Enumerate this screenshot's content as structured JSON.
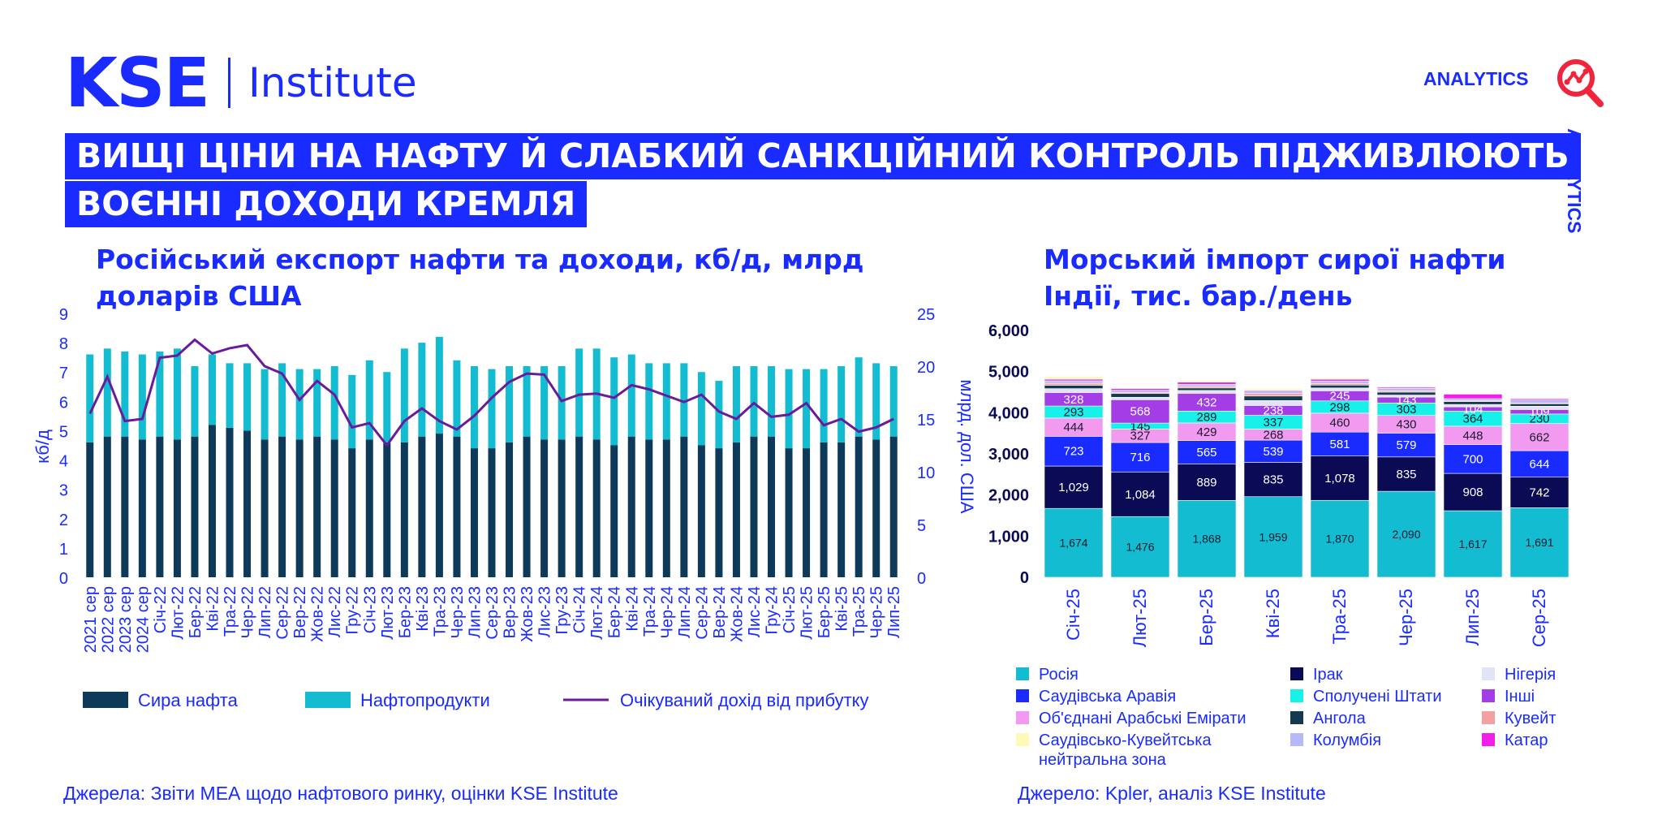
{
  "header": {
    "logo_main": "KSE",
    "logo_sub": "Institute",
    "analytics_label": "ANALYTICS",
    "analytics_side_label": "ANALYTICS",
    "headline_line1": "ВИЩІ ЦІНИ НА НАФТУ Й СЛАБКИЙ САНКЦІЙНИЙ КОНТРОЛЬ ПІДЖИВЛЮЮТЬ",
    "headline_line2": "ВОЄННІ ДОХОДИ КРЕМЛЯ"
  },
  "colors": {
    "brand_blue": "#1a2bff",
    "crude": "#0e3a5a",
    "products": "#14bcd2",
    "revenue_line": "#6a1b9a"
  },
  "chart_data": [
    {
      "type": "bar",
      "title": "Російський експорт нафти та доходи, кб/д, млрд доларів США",
      "ylabel": "кб/д",
      "y2label": "млрд. дол. США",
      "ylim": [
        0,
        9
      ],
      "y2lim": [
        0,
        25
      ],
      "stacked": true,
      "source": "Джерела: Звіти МЕА щодо нафтового ринку, оцінки KSE Institute",
      "categories": [
        "2021 сер",
        "2022 сер",
        "2023 сер",
        "2024 сер",
        "Січ-22",
        "Лют-22",
        "Бер-22",
        "Кві-22",
        "Тра-22",
        "Чер-22",
        "Лип-22",
        "Сер-22",
        "Вер-22",
        "Жов-22",
        "Лис-22",
        "Гру-22",
        "Січ-23",
        "Лют-23",
        "Бер-23",
        "Кві-23",
        "Тра-23",
        "Чер-23",
        "Лип-23",
        "Сер-23",
        "Вер-23",
        "Жов-23",
        "Лис-23",
        "Гру-23",
        "Січ-24",
        "Лют-24",
        "Бер-24",
        "Кві-24",
        "Тра-24",
        "Чер-24",
        "Лип-24",
        "Сер-24",
        "Вер-24",
        "Жов-24",
        "Лис-24",
        "Гру-24",
        "Січ-25",
        "Лют-25",
        "Бер-25",
        "Кві-25",
        "Тра-25",
        "Чер-25",
        "Лип-25"
      ],
      "series": [
        {
          "name": "Сира нафта",
          "axis": "left",
          "values": [
            4.6,
            4.8,
            4.8,
            4.7,
            4.8,
            4.7,
            4.8,
            5.2,
            5.1,
            5.0,
            4.7,
            4.8,
            4.7,
            4.8,
            4.7,
            4.4,
            4.7,
            4.6,
            4.6,
            4.8,
            4.9,
            4.8,
            4.4,
            4.4,
            4.6,
            4.8,
            4.7,
            4.7,
            4.8,
            4.7,
            4.5,
            4.8,
            4.7,
            4.7,
            4.8,
            4.5,
            4.4,
            4.6,
            4.8,
            4.8,
            4.4,
            4.4,
            4.6,
            4.6,
            4.8,
            4.7,
            4.8
          ]
        },
        {
          "name": "Нафтопродукти",
          "axis": "left",
          "values": [
            3.0,
            3.0,
            2.9,
            2.9,
            2.9,
            3.1,
            2.4,
            2.4,
            2.2,
            2.3,
            2.4,
            2.5,
            2.4,
            2.3,
            2.5,
            2.5,
            2.7,
            2.4,
            3.2,
            3.2,
            3.3,
            2.6,
            2.8,
            2.7,
            2.6,
            2.4,
            2.5,
            2.5,
            3.0,
            3.1,
            3.0,
            2.8,
            2.6,
            2.6,
            2.5,
            2.5,
            2.3,
            2.6,
            2.4,
            2.4,
            2.7,
            2.7,
            2.5,
            2.6,
            2.7,
            2.6,
            2.4
          ]
        },
        {
          "name": "Очікуваний дохід від прибутку",
          "axis": "right",
          "type": "line",
          "values": [
            15.5,
            19.0,
            14.8,
            15.0,
            20.8,
            21.0,
            22.5,
            21.2,
            21.7,
            22.0,
            20.0,
            19.3,
            16.8,
            18.6,
            17.3,
            14.2,
            14.6,
            12.5,
            14.8,
            16.0,
            14.8,
            14.0,
            15.3,
            17.0,
            18.5,
            19.3,
            19.2,
            16.7,
            17.3,
            17.4,
            17.0,
            18.2,
            17.8,
            17.2,
            16.6,
            17.3,
            15.7,
            15.0,
            16.5,
            15.2,
            15.4,
            16.5,
            14.4,
            15.0,
            13.8,
            14.2,
            15.0
          ]
        }
      ],
      "legend": [
        "Сира нафта",
        "Нафтопродукти",
        "Очікуваний дохід від прибутку"
      ],
      "legend_position": "bottom"
    },
    {
      "type": "bar",
      "title": "Морський імпорт сирої нафти Індії, тис. бар./день",
      "ylim": [
        0,
        6000
      ],
      "yticks": [
        "0",
        "1,000",
        "2,000",
        "3,000",
        "4,000",
        "5,000",
        "6,000"
      ],
      "stacked": true,
      "source": "Джерело: Kpler, аналіз KSE Institute",
      "categories": [
        "Січ-25",
        "Лют-25",
        "Бер-25",
        "Кві-25",
        "Тра-25",
        "Чер-25",
        "Лип-25",
        "Сер-25"
      ],
      "series": [
        {
          "name": "Росія",
          "color": "#14bcd2",
          "values": [
            1674,
            1476,
            1868,
            1959,
            1870,
            2090,
            1617,
            1691
          ],
          "labels": [
            "1,674",
            "1,476",
            "1,868",
            "1,959",
            "1,870",
            "2,090",
            "1,617",
            "1,691"
          ]
        },
        {
          "name": "Ірак",
          "color": "#0a0a55",
          "values": [
            1029,
            1084,
            889,
            835,
            1078,
            835,
            908,
            742
          ],
          "labels": [
            "1,029",
            "1,084",
            "889",
            "835",
            "1,078",
            "835",
            "908",
            "742"
          ]
        },
        {
          "name": "Саудівська Аравія",
          "color": "#1a2bff",
          "values": [
            723,
            716,
            565,
            539,
            581,
            579,
            700,
            644
          ],
          "labels": [
            "723",
            "716",
            "565",
            "539",
            "581",
            "579",
            "700",
            "644"
          ]
        },
        {
          "name": "Об'єднані Арабські Емірати",
          "color": "#f29af0",
          "values": [
            444,
            327,
            429,
            268,
            460,
            430,
            448,
            662
          ],
          "labels": [
            "444",
            "327",
            "429",
            "268",
            "460",
            "430",
            "448",
            "662"
          ]
        },
        {
          "name": "Сполучені Штати",
          "color": "#18f0ea",
          "values": [
            293,
            145,
            289,
            337,
            298,
            303,
            364,
            230
          ],
          "labels": [
            "293",
            "145",
            "289",
            "337",
            "298",
            "303",
            "364",
            "230"
          ]
        },
        {
          "name": "Інші",
          "color": "#a33ee6",
          "values": [
            328,
            568,
            432,
            238,
            245,
            143,
            104,
            109
          ],
          "labels": [
            "328",
            "568",
            "432",
            "238",
            "245",
            "143",
            "104",
            "109"
          ]
        },
        {
          "name": "Нігерія",
          "color": "#e3e3f8",
          "values": [
            95,
            60,
            70,
            120,
            70,
            50,
            60,
            80
          ],
          "labels": []
        },
        {
          "name": "Ангола",
          "color": "#15394f",
          "values": [
            80,
            90,
            60,
            110,
            70,
            70,
            70,
            60
          ],
          "labels": []
        },
        {
          "name": "Кувейт",
          "color": "#f4a0a0",
          "values": [
            50,
            30,
            40,
            60,
            40,
            30,
            20,
            20
          ],
          "labels": []
        },
        {
          "name": "Колумбія",
          "color": "#b7b8f6",
          "values": [
            60,
            50,
            50,
            60,
            60,
            60,
            50,
            70
          ],
          "labels": []
        },
        {
          "name": "Катар",
          "color": "#f020ea",
          "values": [
            40,
            40,
            50,
            20,
            40,
            30,
            110,
            30
          ],
          "labels": []
        },
        {
          "name": "Саудівсько-Кувейтська нейтральна зона",
          "color": "#fdf9b8",
          "values": [
            70,
            20,
            40,
            40,
            30,
            20,
            0,
            20
          ],
          "labels": []
        }
      ],
      "legend_columns": [
        [
          "Росія",
          "Саудівська Аравія",
          "Об'єднані Арабські Емірати",
          "Саудівсько-Кувейтська нейтральна зона"
        ],
        [
          "Ірак",
          "Сполучені Штати",
          "Ангола",
          "Колумбія"
        ],
        [
          "Нігерія",
          "Інші",
          "Кувейт",
          "Катар"
        ]
      ],
      "legend_position": "bottom"
    }
  ]
}
